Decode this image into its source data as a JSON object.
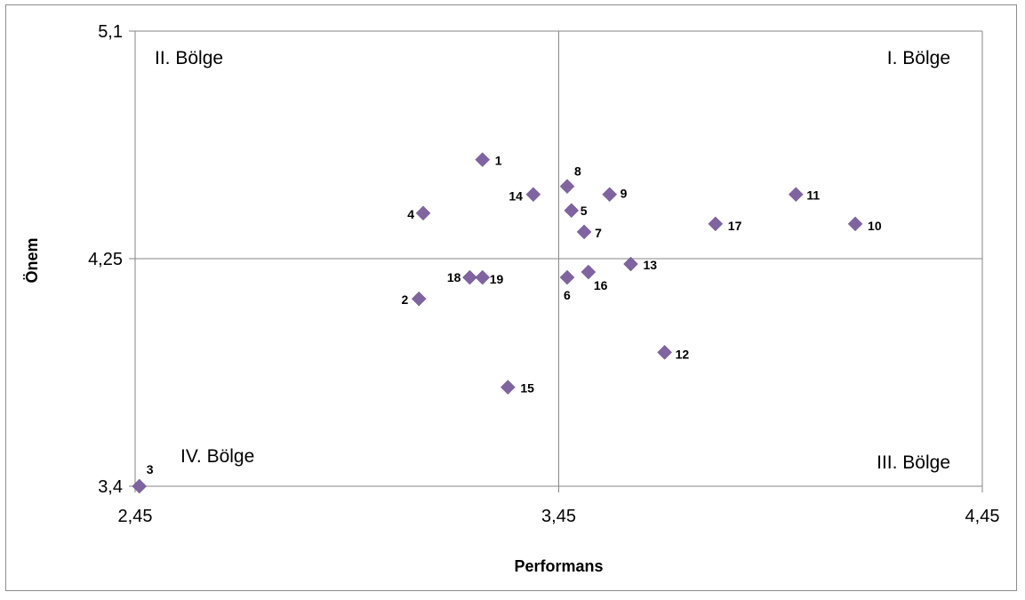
{
  "chart_data": {
    "type": "scatter",
    "title": "",
    "xlabel": "Performans",
    "ylabel": "Önem",
    "xlim": [
      2.45,
      4.45
    ],
    "ylim": [
      3.4,
      5.1
    ],
    "x_ticks": [
      "2,45",
      "3,45",
      "4,45"
    ],
    "y_ticks": [
      "3,4",
      "4,25",
      "5,1"
    ],
    "crosshair": {
      "x": 3.45,
      "y": 4.25
    },
    "marker": "diamond",
    "marker_color": "#8064A2",
    "quadrant_labels": {
      "top_left": "II. Bölge",
      "top_right": "I. Bölge",
      "bottom_left": "IV. Bölge",
      "bottom_right": "III. Bölge"
    },
    "points": [
      {
        "label": "1",
        "x": 3.27,
        "y": 4.62
      },
      {
        "label": "2",
        "x": 3.12,
        "y": 4.1
      },
      {
        "label": "3",
        "x": 2.46,
        "y": 3.4
      },
      {
        "label": "4",
        "x": 3.13,
        "y": 4.42
      },
      {
        "label": "5",
        "x": 3.48,
        "y": 4.43
      },
      {
        "label": "6",
        "x": 3.47,
        "y": 4.18
      },
      {
        "label": "7",
        "x": 3.51,
        "y": 4.35
      },
      {
        "label": "8",
        "x": 3.47,
        "y": 4.52
      },
      {
        "label": "9",
        "x": 3.57,
        "y": 4.49
      },
      {
        "label": "10",
        "x": 4.15,
        "y": 4.38
      },
      {
        "label": "11",
        "x": 4.01,
        "y": 4.49
      },
      {
        "label": "12",
        "x": 3.7,
        "y": 3.9
      },
      {
        "label": "13",
        "x": 3.62,
        "y": 4.23
      },
      {
        "label": "14",
        "x": 3.39,
        "y": 4.49
      },
      {
        "label": "15",
        "x": 3.33,
        "y": 3.77
      },
      {
        "label": "16",
        "x": 3.52,
        "y": 4.2
      },
      {
        "label": "17",
        "x": 3.82,
        "y": 4.38
      },
      {
        "label": "18",
        "x": 3.24,
        "y": 4.18
      },
      {
        "label": "19",
        "x": 3.27,
        "y": 4.18
      }
    ]
  }
}
